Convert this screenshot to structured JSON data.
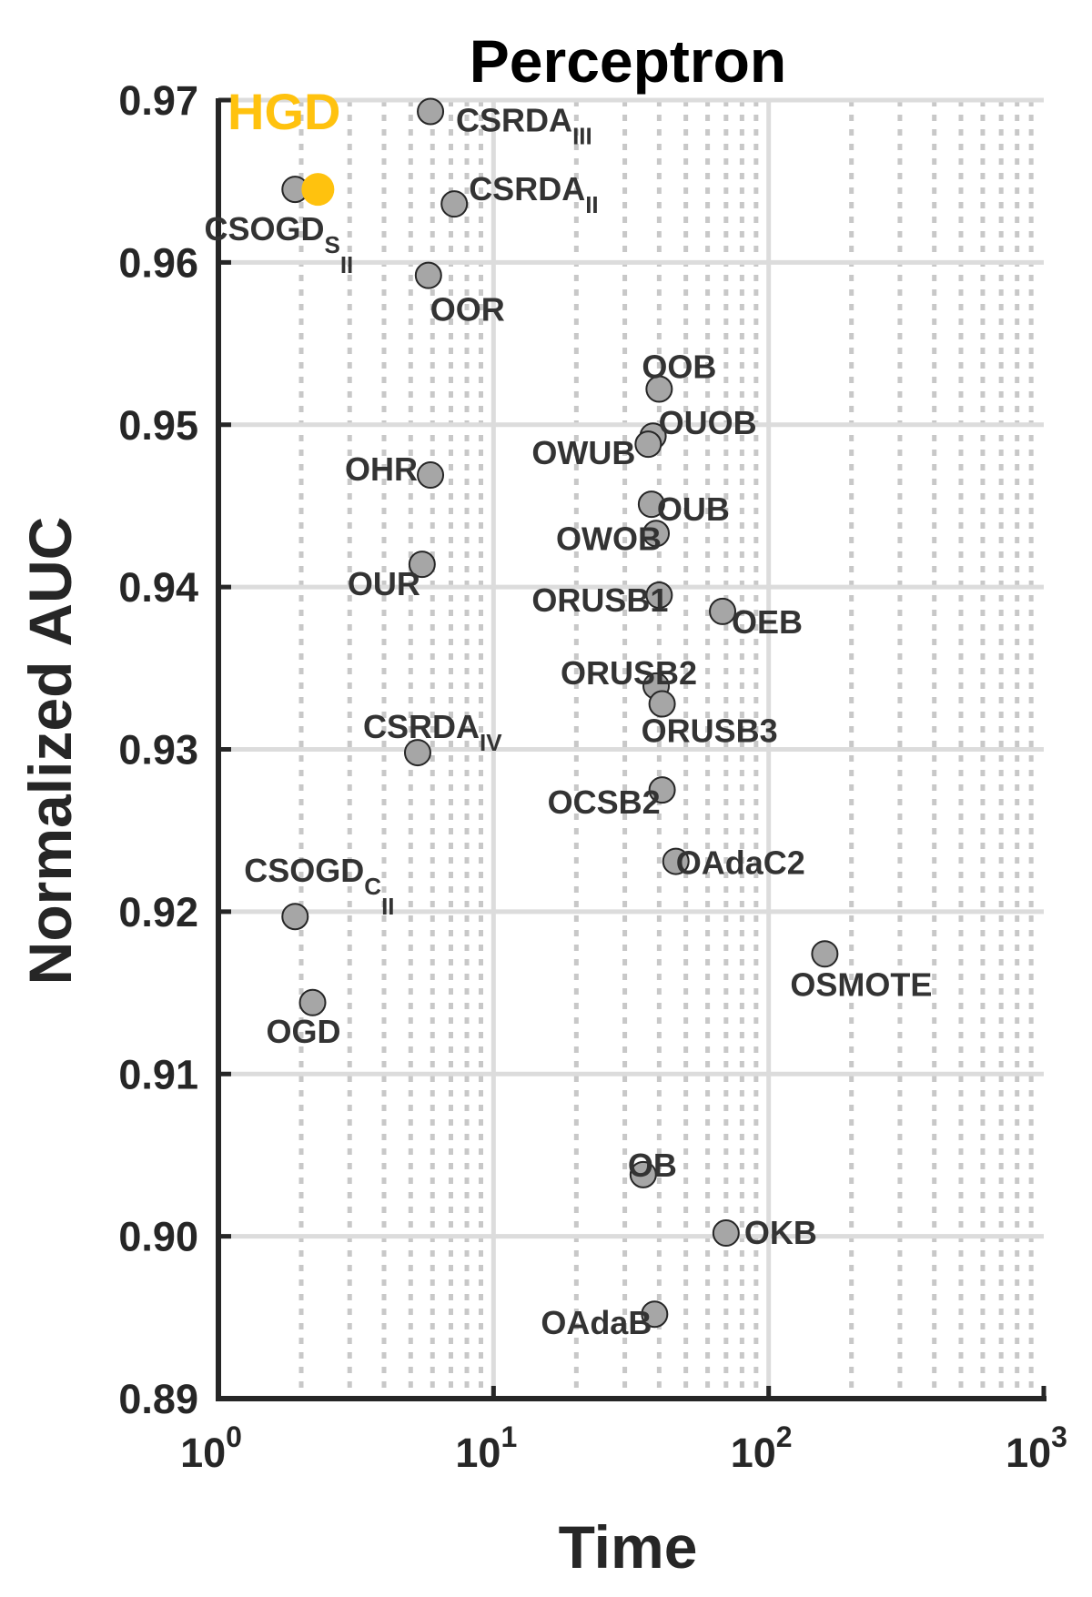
{
  "chart_data": {
    "type": "scatter",
    "title": "Perceptron",
    "xlabel": "Time",
    "ylabel": "Normalized AUC",
    "xscale": "log",
    "xlim": [
      1,
      1000
    ],
    "ylim": [
      0.89,
      0.97
    ],
    "x_ticks": [
      {
        "base": "10",
        "exp": "0"
      },
      {
        "base": "10",
        "exp": "1"
      },
      {
        "base": "10",
        "exp": "2"
      },
      {
        "base": "10",
        "exp": "3"
      }
    ],
    "y_ticks": [
      "0.89",
      "0.90",
      "0.91",
      "0.92",
      "0.93",
      "0.94",
      "0.95",
      "0.96",
      "0.97"
    ],
    "grid": true,
    "colors": {
      "point_fill": "#a6a6a6",
      "point_edge": "#262626",
      "highlight": "#ffc20e",
      "grid_major": "#dcdcdc",
      "grid_minor": "#c8c8c8",
      "axis": "#262626"
    },
    "highlight": {
      "label": "HGD",
      "x": 2.3,
      "y": 0.9645
    },
    "points": [
      {
        "label": "CSRDA",
        "sub": "III",
        "x": 5.9,
        "y": 0.9693
      },
      {
        "label": "CSOGD",
        "sub": "S",
        "subsub": "II",
        "x": 1.9,
        "y": 0.9645
      },
      {
        "label": "CSRDA",
        "sub": "II",
        "x": 7.2,
        "y": 0.9636
      },
      {
        "label": "OOR",
        "x": 5.8,
        "y": 0.9592
      },
      {
        "label": "OOB",
        "x": 40,
        "y": 0.9522
      },
      {
        "label": "OUOB",
        "x": 38,
        "y": 0.9493
      },
      {
        "label": "OWUB",
        "x": 36.5,
        "y": 0.9488
      },
      {
        "label": "OHR",
        "x": 5.9,
        "y": 0.9469
      },
      {
        "label": "OUB",
        "x": 37.5,
        "y": 0.9451
      },
      {
        "label": "OWOB",
        "x": 39,
        "y": 0.9433
      },
      {
        "label": "OUR",
        "x": 5.5,
        "y": 0.9414
      },
      {
        "label": "ORUSB1",
        "x": 40,
        "y": 0.9395
      },
      {
        "label": "OEB",
        "x": 68,
        "y": 0.9385
      },
      {
        "label": "ORUSB2",
        "x": 39,
        "y": 0.9339
      },
      {
        "label": "ORUSB3",
        "x": 41,
        "y": 0.9328
      },
      {
        "label": "CSRDA",
        "sub": "IV",
        "x": 5.3,
        "y": 0.9298
      },
      {
        "label": "OCSB2",
        "x": 41,
        "y": 0.9275
      },
      {
        "label": "OAdaC2",
        "x": 46,
        "y": 0.9231
      },
      {
        "label": "CSOGD",
        "sub": "C",
        "subsub": "II",
        "x": 1.9,
        "y": 0.9197
      },
      {
        "label": "OSMOTE",
        "x": 160,
        "y": 0.9174
      },
      {
        "label": "OGD",
        "x": 2.2,
        "y": 0.9144
      },
      {
        "label": "OB",
        "x": 35,
        "y": 0.9038
      },
      {
        "label": "OKB",
        "x": 70,
        "y": 0.9002
      },
      {
        "label": "OAdaB",
        "x": 38.5,
        "y": 0.8952
      }
    ]
  }
}
